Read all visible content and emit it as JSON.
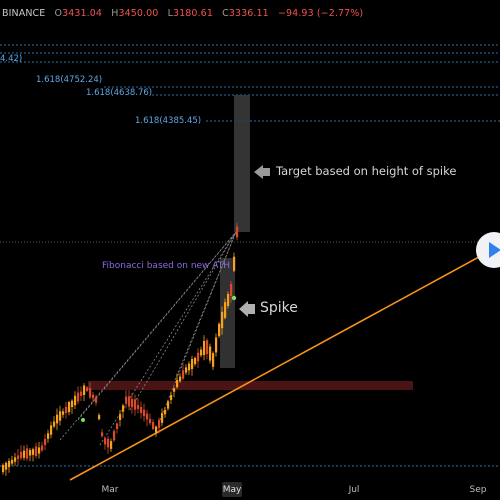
{
  "header": {
    "symbol_fragment": "BINANCE",
    "open_label": "O",
    "open": "3431.04",
    "high_label": "H",
    "high": "3450.00",
    "low_label": "L",
    "low": "3180.61",
    "close_label": "C",
    "close": "3336.11",
    "change": "−94.93 (−2.77%)"
  },
  "fib_labels": {
    "partial_top": "4.42)",
    "l1": "1.618(4752.24)",
    "l2": "1.618(4638.76)",
    "l3": "1.618(4385.45)"
  },
  "annotations": {
    "target": "Target based on height of spike",
    "spike": "Spike",
    "fib_note": "Fibonacci based on new ATH"
  },
  "xaxis": {
    "ticks": [
      "Mar",
      "May",
      "Jul",
      "Sep"
    ]
  },
  "colors": {
    "bull": "#f7a21b",
    "bear": "#d94b2b",
    "trendline": "#f7931a",
    "fib_line": "#2f6fb0",
    "support_zone": "#4a1414",
    "target_box": "#3a3a3a",
    "accent_play": "#2f80ed"
  },
  "chart_data": {
    "type": "candlestick",
    "title": "",
    "xlabel": "",
    "ylabel": "",
    "x_ticks": [
      "Mar",
      "May",
      "Jul",
      "Sep"
    ],
    "last_candle": {
      "open": 3431.04,
      "high": 3450.0,
      "low": 3180.61,
      "close": 3336.11,
      "change": -94.93,
      "change_pct": -2.77
    },
    "fib_levels": [
      {
        "ratio": 1.618,
        "value": 4752.24
      },
      {
        "ratio": 1.618,
        "value": 4638.76
      },
      {
        "ratio": 1.618,
        "value": 4385.45
      }
    ],
    "annotations": [
      "Target based on height of spike",
      "Spike",
      "Fibonacci based on new ATH"
    ],
    "grid": false
  }
}
